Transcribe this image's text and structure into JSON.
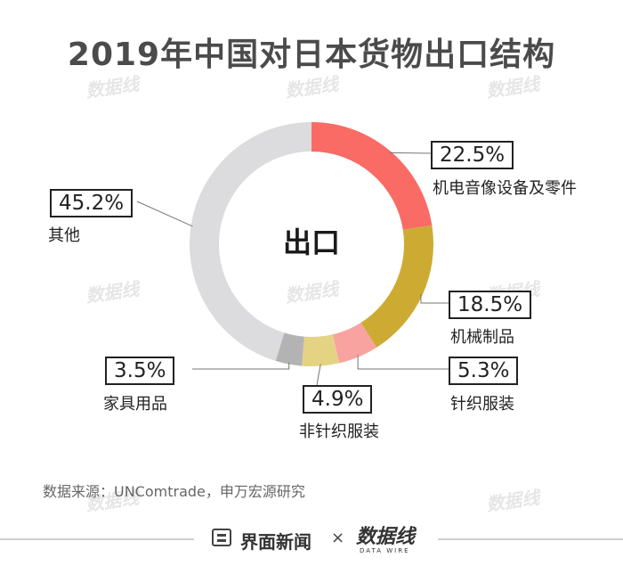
{
  "title": "2019年中国对日本货物出口结构",
  "center_label": "出口",
  "source": "数据来源：UNComtrade，申万宏源研究",
  "footer": {
    "brand": "界面新闻",
    "separator": "×",
    "logo": "数据线",
    "logo_sub": "DATA WIRE"
  },
  "watermark": "数据线",
  "colors": {
    "machinery_electrical": "#f96b64",
    "machinery": "#cdab33",
    "knit_apparel": "#f9a3a0",
    "non_knit_apparel": "#e4d383",
    "furniture": "#b3b3b3",
    "other": "#dcdcde"
  },
  "chart_data": {
    "type": "pie",
    "donut": true,
    "title": "2019年中国对日本货物出口结构",
    "center_text": "出口",
    "unit": "%",
    "slices": [
      {
        "label": "机电音像设备及零件",
        "value": 22.5,
        "display": "22.5%",
        "color": "#f96b64"
      },
      {
        "label": "机械制品",
        "value": 18.5,
        "display": "18.5%",
        "color": "#cdab33"
      },
      {
        "label": "针织服装",
        "value": 5.3,
        "display": "5.3%",
        "color": "#f9a3a0"
      },
      {
        "label": "非针织服装",
        "value": 4.9,
        "display": "4.9%",
        "color": "#e4d383"
      },
      {
        "label": "家具用品",
        "value": 3.5,
        "display": "3.5%",
        "color": "#b3b3b3"
      },
      {
        "label": "其他",
        "value": 45.2,
        "display": "45.2%",
        "color": "#dcdcde"
      }
    ]
  }
}
